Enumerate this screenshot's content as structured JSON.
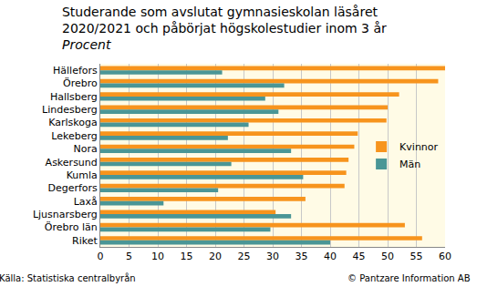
{
  "chart_data": {
    "type": "bar",
    "orientation": "horizontal",
    "title": "Studerande som avslutat gymnasieskolan läsåret 2020/2021 och påbörjat högskolestudier inom 3 år",
    "subtitle": "Procent",
    "source": "Källa: Statistiska centralbyrån",
    "credit": "© Pantzare Information AB",
    "categories": [
      "Hällefors",
      "Örebro",
      "Hallsberg",
      "Lindesberg",
      "Karlskoga",
      "Lekeberg",
      "Nora",
      "Askersund",
      "Kumla",
      "Degerfors",
      "Laxå",
      "Ljusnarsberg",
      "Örebro län",
      "Riket"
    ],
    "series": [
      {
        "name": "Kvinnor",
        "color": "#f7941d",
        "values": [
          60,
          58.8,
          52,
          50,
          49.8,
          44.8,
          44.2,
          43.2,
          42.8,
          42.5,
          35.7,
          30.5,
          53,
          56
        ]
      },
      {
        "name": "Män",
        "color": "#4a9696",
        "values": [
          21.2,
          32,
          28.7,
          31,
          25.8,
          22.2,
          33.2,
          22.8,
          35.3,
          20.5,
          11,
          33.2,
          29.6,
          40
        ]
      }
    ],
    "xlim": [
      0,
      60
    ],
    "xticks": [
      0,
      5,
      10,
      15,
      20,
      25,
      30,
      35,
      40,
      45,
      50,
      55,
      60
    ],
    "grid": true,
    "legend": "right"
  }
}
